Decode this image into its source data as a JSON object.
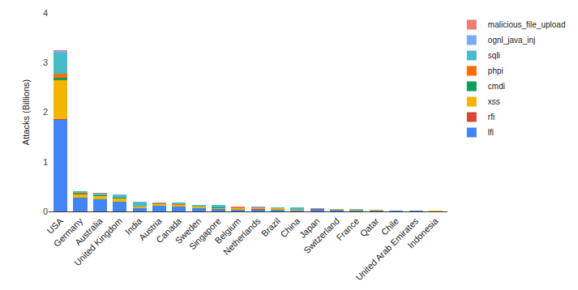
{
  "chart_data": {
    "type": "bar",
    "stacked": true,
    "y_label": "Attacks (Billions)",
    "categories": [
      "USA",
      "Germany",
      "Australia",
      "United Kingdom",
      "India",
      "Austria",
      "Canada",
      "Sweden",
      "Singapore",
      "Belgium",
      "Netherlands",
      "Brazil",
      "China",
      "Japan",
      "Switzerland",
      "France",
      "Qatar",
      "Chile",
      "United Arab Emirates",
      "Indonesia"
    ],
    "series": [
      {
        "name": "lfi",
        "color": "#4285f4",
        "values": [
          1.85,
          0.27,
          0.24,
          0.19,
          0.06,
          0.11,
          0.09,
          0.06,
          0.05,
          0.03,
          0.04,
          0.03,
          0.02,
          0.04,
          0.03,
          0.02,
          0.02,
          0.01,
          0.01,
          0.008
        ]
      },
      {
        "name": "rfi",
        "color": "#db4437",
        "values": [
          0.01,
          0.005,
          0.003,
          0.003,
          0.001,
          0.001,
          0.001,
          0.001,
          0.001,
          0.001,
          0.001,
          0.001,
          0.001,
          0.001,
          0.001,
          0.001,
          0,
          0,
          0,
          0
        ]
      },
      {
        "name": "xss",
        "color": "#f4b400",
        "values": [
          0.78,
          0.07,
          0.07,
          0.07,
          0.03,
          0.03,
          0.04,
          0.03,
          0.02,
          0.04,
          0.02,
          0.03,
          0.01,
          0.01,
          0.01,
          0.01,
          0.005,
          0.005,
          0.004,
          0.004
        ]
      },
      {
        "name": "cmdi",
        "color": "#0f9d58",
        "values": [
          0.05,
          0.01,
          0.01,
          0.01,
          0.005,
          0.005,
          0.005,
          0.003,
          0.003,
          0.002,
          0.002,
          0.002,
          0.002,
          0.002,
          0.002,
          0.001,
          0.001,
          0.001,
          0.001,
          0.001
        ]
      },
      {
        "name": "phpi",
        "color": "#ff6d01",
        "values": [
          0.08,
          0.02,
          0.01,
          0.01,
          0.01,
          0.01,
          0.01,
          0.005,
          0.005,
          0.005,
          0.005,
          0.005,
          0.003,
          0.003,
          0.002,
          0.002,
          0.001,
          0.001,
          0.001,
          0.001
        ]
      },
      {
        "name": "sqli",
        "color": "#46bdc6",
        "values": [
          0.43,
          0.03,
          0.03,
          0.05,
          0.08,
          0.02,
          0.03,
          0.03,
          0.05,
          0.01,
          0.02,
          0.01,
          0.04,
          0.01,
          0.01,
          0.01,
          0.01,
          0.005,
          0.002,
          0.002
        ]
      },
      {
        "name": "ognl_java_inj",
        "color": "#7baaf7",
        "values": [
          0.03,
          0.003,
          0.003,
          0.003,
          0.002,
          0.001,
          0.001,
          0.001,
          0.001,
          0.001,
          0.001,
          0.001,
          0.001,
          0.001,
          0.001,
          0,
          0,
          0,
          0,
          0
        ]
      },
      {
        "name": "malicious_file_upload",
        "color": "#f07b72",
        "values": [
          0.02,
          0.002,
          0.002,
          0.002,
          0.001,
          0.001,
          0.001,
          0.001,
          0.001,
          0.001,
          0.001,
          0,
          0,
          0,
          0,
          0,
          0,
          0,
          0,
          0
        ]
      }
    ],
    "ylim": [
      0,
      4
    ],
    "yticks": [
      0,
      1,
      2,
      3,
      4
    ],
    "grid": false,
    "legend": "right"
  }
}
